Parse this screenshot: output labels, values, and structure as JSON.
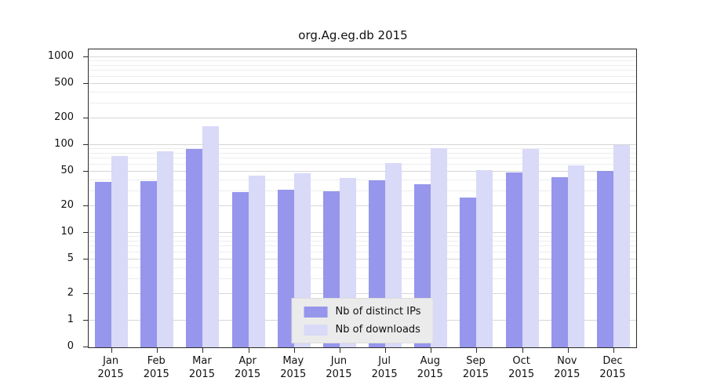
{
  "title": "org.Ag.eg.db 2015",
  "chart_data": {
    "type": "bar",
    "title": "org.Ag.eg.db 2015",
    "categories": [
      "Jan 2015",
      "Feb 2015",
      "Mar 2015",
      "Apr 2015",
      "May 2015",
      "Jun 2015",
      "Jul 2015",
      "Aug 2015",
      "Sep 2015",
      "Oct 2015",
      "Nov 2015",
      "Dec 2015"
    ],
    "series": [
      {
        "name": "Nb of distinct IPs",
        "color": "#9696ec",
        "values": [
          38,
          39,
          90,
          29,
          31,
          30,
          40,
          36,
          25,
          49,
          43,
          51
        ]
      },
      {
        "name": "Nb of downloads",
        "color": "#d9d9f8",
        "values": [
          75,
          85,
          165,
          45,
          48,
          42,
          62,
          92,
          52,
          90,
          59,
          100
        ]
      }
    ],
    "xlabel": "",
    "ylabel": "",
    "yscale": "log",
    "yticks": [
      0,
      1,
      2,
      5,
      10,
      20,
      50,
      100,
      200,
      500,
      1000
    ],
    "ylim": [
      0,
      1200
    ],
    "grid": true,
    "legend_position": "bottom-center",
    "grid_major_color": "#d6d6d6",
    "grid_minor_color": "#ededed"
  }
}
